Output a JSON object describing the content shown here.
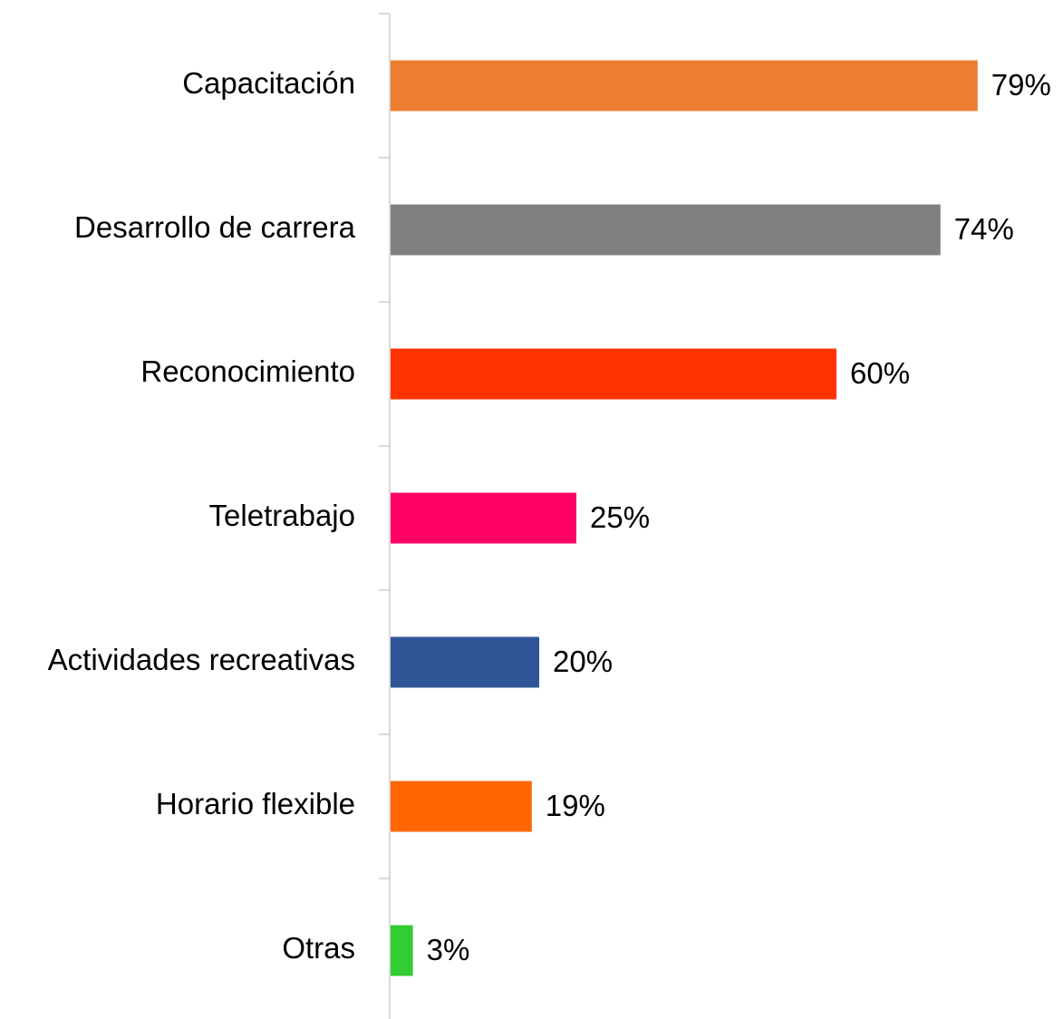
{
  "chart_data": {
    "type": "bar",
    "orientation": "horizontal",
    "categories": [
      "Capacitación",
      "Desarrollo de carrera",
      "Reconocimiento",
      "Teletrabajo",
      "Actividades recreativas",
      "Horario flexible",
      "Otras"
    ],
    "values": [
      79,
      74,
      60,
      25,
      20,
      19,
      3
    ],
    "value_labels": [
      "79%",
      "74%",
      "60%",
      "25%",
      "20%",
      "19%",
      "3%"
    ],
    "colors": [
      "#ed7d31",
      "#808080",
      "#ff3300",
      "#ff0066",
      "#2f5597",
      "#ff6600",
      "#33cc33"
    ]
  }
}
